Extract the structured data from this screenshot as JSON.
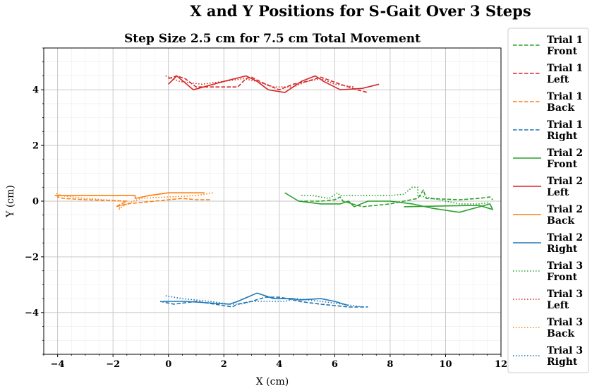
{
  "chart_data": {
    "type": "line",
    "suptitle": "X and Y Positions for S-Gait Over 3 Steps",
    "title": "Step Size 2.5 cm for 7.5 cm Total Movement",
    "xlabel": "X (cm)",
    "ylabel": "Y (cm)",
    "xlim": [
      -4.5,
      12
    ],
    "ylim": [
      -5.5,
      5.5
    ],
    "xticks": [
      -4,
      -2,
      0,
      2,
      4,
      6,
      8,
      10,
      12
    ],
    "yticks": [
      -4,
      -2,
      0,
      2,
      4
    ],
    "xtick_labels": [
      "−4",
      "−2",
      "0",
      "2",
      "4",
      "6",
      "8",
      "10",
      "12"
    ],
    "ytick_labels": [
      "−4",
      "−2",
      "0",
      "2",
      "4"
    ],
    "grid": true,
    "legend_position": "outside-right",
    "colors": {
      "front": "#2ca02c",
      "left": "#d62728",
      "back": "#ff7f0e",
      "right": "#1f77b4"
    },
    "series": [
      {
        "name": "Trial 1 Front",
        "name_lines": [
          "Trial 1",
          "Front"
        ],
        "color": "#2ca02c",
        "style": "dashed",
        "points": [
          [
            4.7,
            0.0
          ],
          [
            5.5,
            0.0
          ],
          [
            6.0,
            0.05
          ],
          [
            6.2,
            0.15
          ],
          [
            6.3,
            0.0
          ],
          [
            7.0,
            -0.2
          ],
          [
            8.0,
            -0.1
          ],
          [
            8.5,
            0.0
          ],
          [
            9.0,
            0.1
          ],
          [
            9.2,
            0.4
          ],
          [
            9.3,
            0.1
          ],
          [
            10.5,
            0.05
          ],
          [
            11.2,
            0.1
          ],
          [
            11.6,
            0.15
          ],
          [
            11.7,
            0.05
          ]
        ]
      },
      {
        "name": "Trial 1 Left",
        "name_lines": [
          "Trial 1",
          "Left"
        ],
        "color": "#d62728",
        "style": "dashed",
        "points": [
          [
            0.0,
            4.4
          ],
          [
            0.3,
            4.5
          ],
          [
            0.6,
            4.4
          ],
          [
            1.0,
            4.1
          ],
          [
            2.5,
            4.1
          ],
          [
            2.8,
            4.4
          ],
          [
            3.0,
            4.45
          ],
          [
            3.5,
            4.2
          ],
          [
            4.0,
            4.0
          ],
          [
            4.5,
            4.2
          ],
          [
            5.0,
            4.3
          ],
          [
            5.5,
            4.45
          ],
          [
            6.2,
            4.2
          ],
          [
            6.8,
            4.0
          ],
          [
            7.2,
            3.9
          ]
        ]
      },
      {
        "name": "Trial 1 Back",
        "name_lines": [
          "Trial 1",
          "Back"
        ],
        "color": "#ff7f0e",
        "style": "dashed",
        "points": [
          [
            1.5,
            0.05
          ],
          [
            1.0,
            0.05
          ],
          [
            0.5,
            0.1
          ],
          [
            -0.5,
            0.0
          ],
          [
            -1.5,
            -0.1
          ],
          [
            -1.9,
            -0.2
          ],
          [
            -1.5,
            0.0
          ],
          [
            -3.0,
            0.05
          ],
          [
            -3.8,
            0.1
          ],
          [
            -4.0,
            0.15
          ],
          [
            -3.9,
            0.25
          ]
        ]
      },
      {
        "name": "Trial 1 Right",
        "name_lines": [
          "Trial 1",
          "Right"
        ],
        "color": "#1f77b4",
        "style": "dashed",
        "points": [
          [
            -0.3,
            -3.6
          ],
          [
            0.2,
            -3.7
          ],
          [
            1.0,
            -3.6
          ],
          [
            2.0,
            -3.75
          ],
          [
            2.3,
            -3.8
          ],
          [
            2.5,
            -3.7
          ],
          [
            3.0,
            -3.6
          ],
          [
            3.5,
            -3.45
          ],
          [
            4.0,
            -3.45
          ],
          [
            4.3,
            -3.5
          ],
          [
            4.7,
            -3.6
          ],
          [
            5.5,
            -3.7
          ],
          [
            6.0,
            -3.75
          ],
          [
            6.5,
            -3.8
          ],
          [
            7.2,
            -3.8
          ]
        ]
      },
      {
        "name": "Trial 2 Front",
        "name_lines": [
          "Trial 2",
          "Front"
        ],
        "color": "#2ca02c",
        "style": "solid",
        "points": [
          [
            4.2,
            0.3
          ],
          [
            4.7,
            0.0
          ],
          [
            5.5,
            -0.1
          ],
          [
            6.2,
            -0.1
          ],
          [
            6.5,
            0.0
          ],
          [
            6.7,
            -0.2
          ],
          [
            7.2,
            0.0
          ],
          [
            8.0,
            0.0
          ],
          [
            8.8,
            -0.1
          ],
          [
            9.5,
            -0.25
          ],
          [
            10.5,
            -0.4
          ],
          [
            11.6,
            -0.1
          ],
          [
            11.7,
            -0.3
          ],
          [
            11.2,
            -0.15
          ],
          [
            8.5,
            -0.2
          ]
        ]
      },
      {
        "name": "Trial 2 Left",
        "name_lines": [
          "Trial 2",
          "Left"
        ],
        "color": "#d62728",
        "style": "solid",
        "points": [
          [
            0.0,
            4.2
          ],
          [
            0.3,
            4.5
          ],
          [
            0.9,
            4.0
          ],
          [
            2.0,
            4.3
          ],
          [
            2.8,
            4.5
          ],
          [
            3.2,
            4.3
          ],
          [
            3.6,
            4.0
          ],
          [
            4.2,
            3.9
          ],
          [
            4.8,
            4.3
          ],
          [
            5.3,
            4.5
          ],
          [
            5.6,
            4.3
          ],
          [
            6.2,
            4.0
          ],
          [
            7.0,
            4.05
          ],
          [
            7.6,
            4.2
          ]
        ]
      },
      {
        "name": "Trial 2 Back",
        "name_lines": [
          "Trial 2",
          "Back"
        ],
        "color": "#ff7f0e",
        "style": "solid",
        "points": [
          [
            1.3,
            0.3
          ],
          [
            0.9,
            0.3
          ],
          [
            0.0,
            0.3
          ],
          [
            -0.7,
            0.2
          ],
          [
            -1.2,
            0.1
          ],
          [
            -1.2,
            0.2
          ],
          [
            -2.5,
            0.2
          ],
          [
            -3.8,
            0.2
          ],
          [
            -4.1,
            0.2
          ]
        ]
      },
      {
        "name": "Trial 2 Right",
        "name_lines": [
          "Trial 2",
          "Right"
        ],
        "color": "#1f77b4",
        "style": "solid",
        "points": [
          [
            -0.2,
            -3.6
          ],
          [
            0.6,
            -3.6
          ],
          [
            2.2,
            -3.7
          ],
          [
            2.5,
            -3.6
          ],
          [
            3.2,
            -3.3
          ],
          [
            3.8,
            -3.5
          ],
          [
            4.5,
            -3.5
          ],
          [
            4.7,
            -3.55
          ],
          [
            5.5,
            -3.5
          ],
          [
            6.0,
            -3.6
          ],
          [
            6.5,
            -3.75
          ]
        ]
      },
      {
        "name": "Trial 3 Front",
        "name_lines": [
          "Trial 3",
          "Front"
        ],
        "color": "#2ca02c",
        "style": "dotted",
        "points": [
          [
            4.8,
            0.2
          ],
          [
            5.2,
            0.2
          ],
          [
            5.8,
            0.1
          ],
          [
            6.1,
            0.3
          ],
          [
            6.2,
            0.2
          ],
          [
            7.0,
            0.2
          ],
          [
            8.0,
            0.2
          ],
          [
            8.5,
            0.25
          ],
          [
            8.8,
            0.5
          ],
          [
            9.0,
            0.5
          ],
          [
            9.0,
            0.2
          ],
          [
            10.5,
            -0.1
          ],
          [
            11.2,
            -0.1
          ],
          [
            11.6,
            -0.05
          ]
        ]
      },
      {
        "name": "Trial 3 Left",
        "name_lines": [
          "Trial 3",
          "Left"
        ],
        "color": "#d62728",
        "style": "dotted",
        "points": [
          [
            -0.1,
            4.5
          ],
          [
            0.4,
            4.3
          ],
          [
            1.2,
            4.2
          ],
          [
            2.0,
            4.3
          ],
          [
            2.7,
            4.4
          ],
          [
            3.2,
            4.3
          ],
          [
            3.8,
            4.1
          ],
          [
            4.5,
            4.1
          ],
          [
            5.0,
            4.3
          ],
          [
            5.5,
            4.4
          ],
          [
            6.0,
            4.2
          ],
          [
            6.7,
            4.1
          ]
        ]
      },
      {
        "name": "Trial 3 Back",
        "name_lines": [
          "Trial 3",
          "Back"
        ],
        "color": "#ff7f0e",
        "style": "dotted",
        "points": [
          [
            1.6,
            0.3
          ],
          [
            1.0,
            0.2
          ],
          [
            0.0,
            0.15
          ],
          [
            -1.0,
            0.1
          ],
          [
            -1.5,
            -0.1
          ],
          [
            -1.8,
            -0.3
          ],
          [
            -1.6,
            0.0
          ],
          [
            -3.0,
            0.1
          ],
          [
            -3.9,
            0.2
          ],
          [
            -4.1,
            0.3
          ]
        ]
      },
      {
        "name": "Trial 3 Right",
        "name_lines": [
          "Trial 3",
          "Right"
        ],
        "color": "#1f77b4",
        "style": "dotted",
        "points": [
          [
            -0.1,
            -3.4
          ],
          [
            0.5,
            -3.5
          ],
          [
            1.5,
            -3.6
          ],
          [
            2.2,
            -3.7
          ],
          [
            2.6,
            -3.7
          ],
          [
            3.0,
            -3.6
          ],
          [
            3.6,
            -3.6
          ],
          [
            4.2,
            -3.6
          ],
          [
            4.6,
            -3.5
          ],
          [
            5.5,
            -3.6
          ],
          [
            6.3,
            -3.7
          ],
          [
            7.0,
            -3.8
          ]
        ]
      }
    ]
  }
}
